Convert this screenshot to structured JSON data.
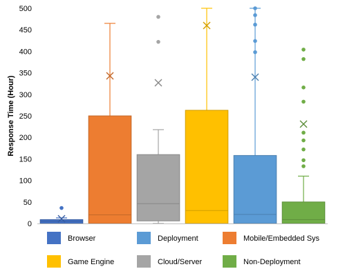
{
  "chart_data": {
    "type": "boxplot",
    "title": "",
    "xlabel": "",
    "ylabel": "Response Time (Hour)",
    "ylim": [
      0,
      500
    ],
    "yticks": [
      0,
      50,
      100,
      150,
      200,
      250,
      300,
      350,
      400,
      450,
      500
    ],
    "grid": false,
    "legend_position": "bottom",
    "series": [
      {
        "name": "Browser",
        "color": "#4472C4",
        "min": 0,
        "q1": 0,
        "median": 5,
        "q3": 9,
        "max": 13,
        "mean": 11,
        "outliers": [
          36
        ]
      },
      {
        "name": "Mobile/Embedded Sys",
        "color": "#ED7D31",
        "min": 0,
        "q1": 0,
        "median": 20,
        "q3": 250,
        "max": 465,
        "mean": 343,
        "outliers": []
      },
      {
        "name": "Cloud/Server",
        "color": "#A5A5A5",
        "min": 0,
        "q1": 6,
        "median": 46,
        "q3": 160,
        "max": 218,
        "mean": 327,
        "outliers": [
          422,
          480
        ]
      },
      {
        "name": "Game Engine",
        "color": "#FFC000",
        "min": 0,
        "q1": 0,
        "median": 30,
        "q3": 263,
        "max": 500,
        "mean": 460,
        "outliers": []
      },
      {
        "name": "Deployment",
        "color": "#5B9BD5",
        "min": 0,
        "q1": 0,
        "median": 21,
        "q3": 158,
        "max": 500,
        "mean": 340,
        "outliers": [
          398,
          424,
          462,
          484,
          500
        ]
      },
      {
        "name": "Non-Deployment",
        "color": "#70AD47",
        "min": 0,
        "q1": 0,
        "median": 9,
        "q3": 50,
        "max": 110,
        "mean": 231,
        "outliers": [
          133,
          147,
          172,
          193,
          211,
          283,
          316,
          382,
          404
        ]
      }
    ],
    "legend": [
      {
        "label": "Browser",
        "color": "#4472C4"
      },
      {
        "label": "Deployment",
        "color": "#5B9BD5"
      },
      {
        "label": "Mobile/Embedded Sys",
        "color": "#ED7D31"
      },
      {
        "label": "Game Engine",
        "color": "#FFC000"
      },
      {
        "label": "Cloud/Server",
        "color": "#A5A5A5"
      },
      {
        "label": "Non-Deployment",
        "color": "#70AD47"
      }
    ]
  }
}
